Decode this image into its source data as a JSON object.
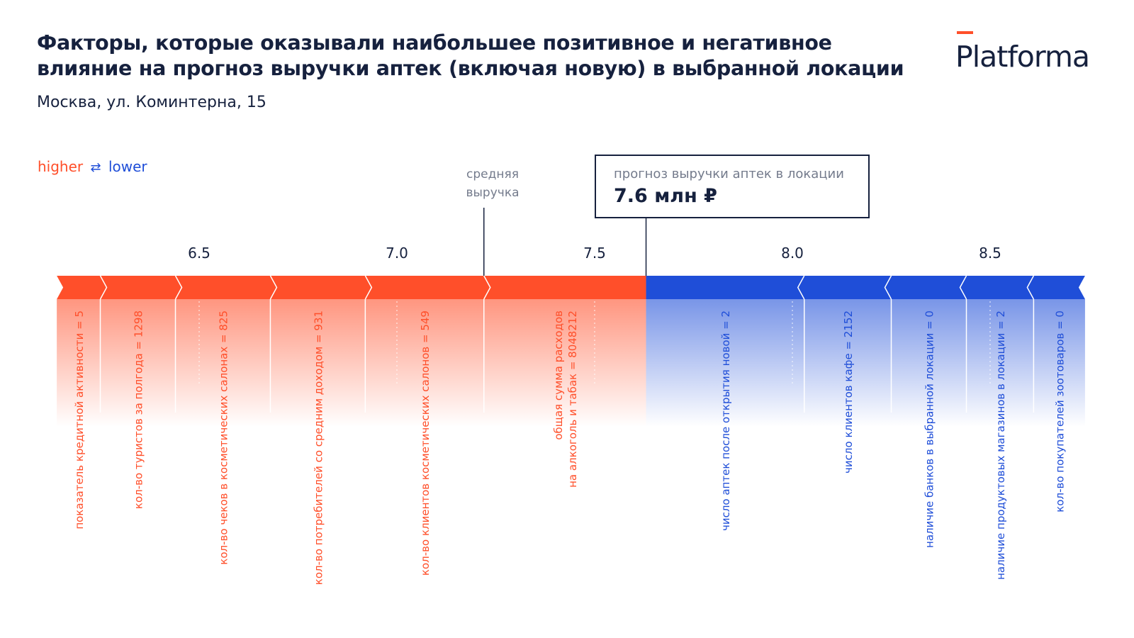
{
  "header": {
    "title": "Факторы, которые оказывали наибольшее позитивное и негативное\nвлияние на прогноз выручки аптек (включая новую) в выбранной локации",
    "subtitle": "Москва, ул. Коминтерна, 15"
  },
  "logo": {
    "text": "Platforma"
  },
  "legend": {
    "higher": "higher",
    "arrows": "⇄",
    "lower": "lower"
  },
  "colors": {
    "positive": "#ff4f2a",
    "negative": "#1f4ed8",
    "text": "#16213e",
    "muted": "#747b8c"
  },
  "annotations": {
    "average_label": "средняя\nвыручка",
    "prediction_label": "прогноз выручки аптек в локации",
    "prediction_value": "7.6 млн ₽"
  },
  "chart_data": {
    "type": "bar",
    "subtype": "force-plot",
    "x_ticks": [
      "6.5",
      "7.0",
      "7.5",
      "8.0",
      "8.5"
    ],
    "base_value": 7.22,
    "prediction": 7.63,
    "positive_features": [
      {
        "label": "показатель кредитной активности = 5",
        "start": 6.14,
        "end": 6.25
      },
      {
        "label": "кол-во туристов за полгода = 1298",
        "start": 6.25,
        "end": 6.44
      },
      {
        "label": "кол-во чеков в косметических салонах = 825",
        "start": 6.44,
        "end": 6.68
      },
      {
        "label": "кол-во потребителей со средним доходом = 931",
        "start": 6.68,
        "end": 6.92
      },
      {
        "label": "кол-во клиентов косметических салонов = 549",
        "start": 6.92,
        "end": 7.22
      },
      {
        "label": "общая сумма расходов\nна алкоголь и табак = 8048212",
        "start": 7.22,
        "end": 7.63
      }
    ],
    "negative_features": [
      {
        "label": "число аптек после открытия новой = 2",
        "start": 7.63,
        "end": 8.03
      },
      {
        "label": "число клиентов кафе = 2152",
        "start": 8.03,
        "end": 8.25
      },
      {
        "label": "наличие банков в выбранной локации = 0",
        "start": 8.25,
        "end": 8.44
      },
      {
        "label": "наличие продуктовых магазинов в локации = 2",
        "start": 8.44,
        "end": 8.61
      },
      {
        "label": "кол-во покупателей зоотоваров = 0",
        "start": 8.61,
        "end": 8.74
      }
    ]
  }
}
